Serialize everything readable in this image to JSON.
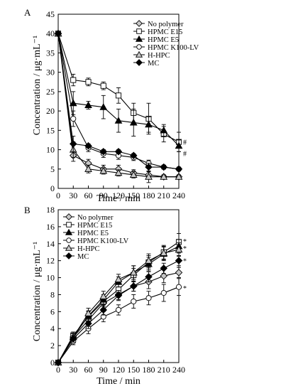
{
  "chart_data": [
    {
      "type": "line",
      "panel": "A",
      "xlabel": "Time / min",
      "ylabel": "Concentration / μg·mL⁻¹",
      "x": [
        0,
        30,
        60,
        90,
        120,
        150,
        180,
        210,
        240
      ],
      "xlim": [
        0,
        240
      ],
      "ylim": [
        0,
        45
      ],
      "xticks": [
        "0",
        "30",
        "60",
        "90",
        "120",
        "150",
        "180",
        "210",
        "240"
      ],
      "yticks": [
        "0",
        "5",
        "10",
        "15",
        "20",
        "25",
        "30",
        "35",
        "40",
        "45"
      ],
      "legend_position": "top-right",
      "grid": false,
      "series": [
        {
          "name": "No polymer",
          "marker": "diamond-open",
          "values": [
            40,
            8.5,
            6.5,
            5,
            5,
            4,
            3.5,
            3,
            3
          ],
          "errors": [
            0,
            1.5,
            1,
            1,
            1,
            0.8,
            0.8,
            0.5,
            0.5
          ]
        },
        {
          "name": "HPMC E15",
          "marker": "square-open",
          "values": [
            40,
            28,
            27.5,
            26.5,
            24,
            19.5,
            18,
            14,
            12
          ],
          "errors": [
            0,
            1.5,
            1,
            1,
            2,
            2.5,
            4,
            2,
            2.5
          ]
        },
        {
          "name": "HPMC E5",
          "marker": "triangle-filled",
          "values": [
            40,
            22,
            21.5,
            21,
            17.5,
            17,
            16.5,
            15,
            11
          ],
          "errors": [
            0,
            3,
            1,
            3,
            3,
            3.5,
            2,
            1.5,
            1.5
          ]
        },
        {
          "name": "HPMC K100-LV",
          "marker": "circle-open",
          "values": [
            40,
            18,
            10.5,
            9,
            8.5,
            8,
            6.5,
            5.5,
            5
          ],
          "errors": [
            0,
            2,
            1,
            1,
            1,
            0.8,
            0.8,
            0.5,
            0.5
          ]
        },
        {
          "name": "H-HPC",
          "marker": "triangle-open",
          "values": [
            40,
            10,
            5,
            4.5,
            4,
            3.5,
            3,
            3,
            3
          ],
          "errors": [
            0,
            2,
            1,
            0.8,
            0.8,
            0.8,
            1.5,
            0.5,
            0.5
          ]
        },
        {
          "name": "MC",
          "marker": "diamond-filled",
          "values": [
            40,
            11.5,
            11,
            9.5,
            9.5,
            8.5,
            5.5,
            5.5,
            5
          ],
          "errors": [
            0,
            2,
            0.5,
            0.5,
            0.5,
            0.5,
            1,
            0.5,
            0.5
          ]
        }
      ],
      "annotations": [
        "#",
        "#"
      ]
    },
    {
      "type": "line",
      "panel": "B",
      "xlabel": "Time / min",
      "ylabel": "Concentration / μg·mL⁻¹",
      "x": [
        0,
        30,
        60,
        90,
        120,
        150,
        180,
        210,
        240
      ],
      "xlim": [
        0,
        240
      ],
      "ylim": [
        0,
        18
      ],
      "xticks": [
        "0",
        "30",
        "60",
        "90",
        "120",
        "150",
        "180",
        "210",
        "240"
      ],
      "yticks": [
        "0",
        "2",
        "4",
        "6",
        "8",
        "10",
        "12",
        "14",
        "16",
        "18"
      ],
      "legend_position": "top-left",
      "grid": false,
      "series": [
        {
          "name": "No polymer",
          "marker": "diamond-open",
          "values": [
            0,
            3,
            5,
            7,
            8,
            9,
            9.5,
            10.2,
            10.6
          ],
          "errors": [
            0,
            0.4,
            0.6,
            0.6,
            0.6,
            0.6,
            0.8,
            0.8,
            0.6
          ]
        },
        {
          "name": "HPMC E15",
          "marker": "square-open",
          "values": [
            0,
            3.2,
            5.4,
            7.2,
            8.6,
            10.3,
            11.8,
            13,
            14.2
          ],
          "errors": [
            0,
            0.4,
            0.6,
            0.6,
            0.6,
            0.8,
            0.8,
            0.8,
            1
          ]
        },
        {
          "name": "HPMC E5",
          "marker": "triangle-filled",
          "values": [
            0,
            3,
            5.5,
            7.4,
            9.5,
            10.6,
            11.6,
            12.8,
            13.7
          ],
          "errors": [
            0,
            0.4,
            0.6,
            0.6,
            0.6,
            0.8,
            0.8,
            0.8,
            0.8
          ]
        },
        {
          "name": "HPMC K100-LV",
          "marker": "circle-open",
          "values": [
            0,
            2.5,
            4,
            5.4,
            6.2,
            7.2,
            7.6,
            8.2,
            8.9
          ],
          "errors": [
            0,
            0.4,
            0.6,
            0.6,
            0.6,
            0.8,
            0.8,
            1,
            1
          ]
        },
        {
          "name": "H-HPC",
          "marker": "triangle-open",
          "values": [
            0,
            3,
            5.8,
            7.8,
            9.8,
            10.6,
            12,
            12.9,
            13.3
          ],
          "errors": [
            0,
            0.4,
            0.6,
            0.6,
            0.6,
            0.8,
            0.8,
            0.8,
            0.8
          ]
        },
        {
          "name": "MC",
          "marker": "diamond-filled",
          "values": [
            0,
            2.8,
            4.6,
            6.2,
            7.9,
            9,
            10.1,
            11.1,
            12
          ],
          "errors": [
            0,
            0.4,
            0.6,
            0.6,
            0.6,
            0.6,
            0.6,
            0.6,
            0.6
          ]
        }
      ],
      "annotations": [
        "*",
        "*",
        "*",
        "*"
      ]
    }
  ]
}
